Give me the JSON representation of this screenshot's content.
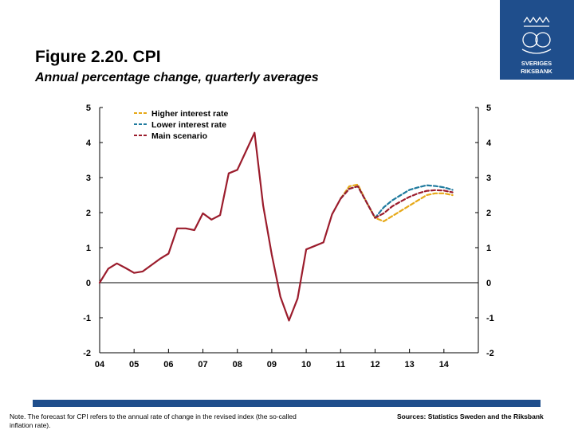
{
  "header": {
    "title": "Figure 2.20. CPI",
    "subtitle": "Annual percentage change, quarterly averages"
  },
  "logo": {
    "name": "Sveriges Riksbank",
    "line1": "SVERIGES",
    "line2": "RIKSBANK"
  },
  "footer": {
    "note": "Note. The forecast for CPI refers to the annual rate of change in the revised index (the so-called inflation rate).",
    "sources": "Sources: Statistics Sweden and the Riksbank"
  },
  "colors": {
    "brand": "#1f4e8c",
    "main": "#9b1c2c",
    "higher": "#e6a817",
    "lower": "#1f7a9e"
  },
  "chart_data": {
    "type": "line",
    "title": "Figure 2.20. CPI",
    "subtitle": "Annual percentage change, quarterly averages",
    "xlabel": "",
    "ylabel": "",
    "x_range": [
      2004.0,
      2015.0
    ],
    "ylim": [
      -2,
      5
    ],
    "y_ticks": [
      5,
      4,
      3,
      2,
      1,
      0,
      -1,
      -2
    ],
    "x_ticks": [
      {
        "value": 2004,
        "label": "04"
      },
      {
        "value": 2005,
        "label": "05"
      },
      {
        "value": 2006,
        "label": "06"
      },
      {
        "value": 2007,
        "label": "07"
      },
      {
        "value": 2008,
        "label": "08"
      },
      {
        "value": 2009,
        "label": "09"
      },
      {
        "value": 2010,
        "label": "10"
      },
      {
        "value": 2011,
        "label": "11"
      },
      {
        "value": 2012,
        "label": "12"
      },
      {
        "value": 2013,
        "label": "13"
      },
      {
        "value": 2014,
        "label": "14"
      }
    ],
    "legend": [
      "Higher interest rate",
      "Lower interest rate",
      "Main scenario"
    ],
    "legend_position": "top-left",
    "series": [
      {
        "name": "Main scenario",
        "style": "solid",
        "color_key": "main",
        "x": [
          2004.0,
          2004.25,
          2004.5,
          2004.75,
          2005.0,
          2005.25,
          2005.5,
          2005.75,
          2006.0,
          2006.25,
          2006.5,
          2006.75,
          2007.0,
          2007.25,
          2007.5,
          2007.75,
          2008.0,
          2008.25,
          2008.5,
          2008.75,
          2009.0,
          2009.25,
          2009.5,
          2009.75,
          2010.0,
          2010.25,
          2010.5,
          2010.75,
          2011.0
        ],
        "values": [
          0.0,
          0.4,
          0.55,
          0.42,
          0.28,
          0.32,
          0.5,
          0.68,
          0.83,
          1.55,
          1.55,
          1.5,
          1.98,
          1.8,
          1.93,
          3.12,
          3.22,
          3.75,
          4.28,
          2.2,
          0.8,
          -0.4,
          -1.08,
          -0.45,
          0.95,
          1.05,
          1.15,
          1.95,
          2.4
        ]
      },
      {
        "name": "Higher interest rate",
        "style": "dashed",
        "color_key": "higher",
        "x": [
          2011.0,
          2011.25,
          2011.5,
          2011.75,
          2012.0,
          2012.25,
          2012.5,
          2012.75,
          2013.0,
          2013.25,
          2013.5,
          2013.75,
          2014.0,
          2014.25
        ],
        "values": [
          2.4,
          2.75,
          2.8,
          2.3,
          1.85,
          1.75,
          1.9,
          2.05,
          2.2,
          2.35,
          2.5,
          2.55,
          2.55,
          2.5
        ]
      },
      {
        "name": "Lower interest rate",
        "style": "dashed",
        "color_key": "lower",
        "x": [
          2011.0,
          2011.25,
          2011.5,
          2011.75,
          2012.0,
          2012.25,
          2012.5,
          2012.75,
          2013.0,
          2013.25,
          2013.5,
          2013.75,
          2014.0,
          2014.25
        ],
        "values": [
          2.4,
          2.68,
          2.75,
          2.3,
          1.85,
          2.15,
          2.35,
          2.5,
          2.65,
          2.72,
          2.78,
          2.76,
          2.72,
          2.65
        ]
      },
      {
        "name": "Main scenario",
        "style": "dashed",
        "color_key": "main",
        "x": [
          2011.0,
          2011.25,
          2011.5,
          2011.75,
          2012.0,
          2012.25,
          2012.5,
          2012.75,
          2013.0,
          2013.25,
          2013.5,
          2013.75,
          2014.0,
          2014.25
        ],
        "values": [
          2.4,
          2.68,
          2.75,
          2.3,
          1.85,
          1.98,
          2.18,
          2.32,
          2.45,
          2.55,
          2.62,
          2.64,
          2.63,
          2.58
        ]
      }
    ]
  }
}
